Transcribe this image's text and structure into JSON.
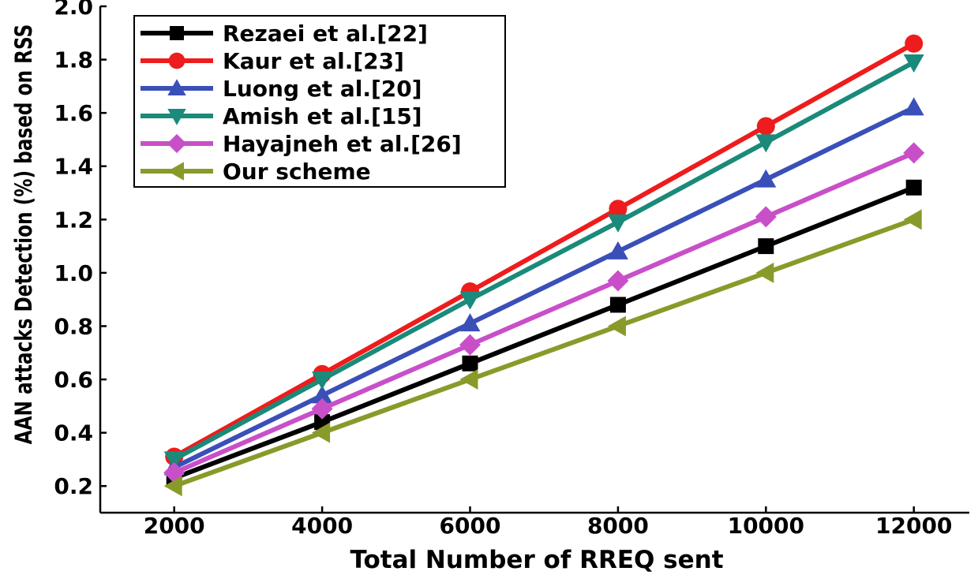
{
  "chart_data": {
    "type": "line",
    "title": "",
    "xlabel": "Total Number of RREQ sent",
    "ylabel": "AAN attacks Detection (%) based on RSS",
    "x": [
      2000,
      4000,
      6000,
      8000,
      10000,
      12000
    ],
    "x_ticks": [
      "2000",
      "4000",
      "6000",
      "8000",
      "10000",
      "12000"
    ],
    "y_ticks": [
      "0.2",
      "0.4",
      "0.6",
      "0.8",
      "1.0",
      "1.2",
      "1.4",
      "1.6",
      "1.8",
      "2.0"
    ],
    "xlim": [
      1000,
      12750
    ],
    "ylim": [
      0.1,
      2.0
    ],
    "grid": false,
    "legend_position": "top-left",
    "series": [
      {
        "name": "Rezaei et al.[22]",
        "color": "#000000",
        "marker": "square",
        "values": [
          0.23,
          0.44,
          0.66,
          0.88,
          1.1,
          1.32
        ]
      },
      {
        "name": "Kaur et al.[23]",
        "color": "#ee1c1c",
        "marker": "circle",
        "values": [
          0.31,
          0.62,
          0.93,
          1.24,
          1.55,
          1.86
        ]
      },
      {
        "name": "Luong et al.[20]",
        "color": "#3a4fb8",
        "marker": "triangle-up",
        "values": [
          0.27,
          0.54,
          0.81,
          1.08,
          1.35,
          1.62
        ]
      },
      {
        "name": "Amish et al.[15]",
        "color": "#1a8a7a",
        "marker": "triangle-down",
        "values": [
          0.3,
          0.6,
          0.9,
          1.19,
          1.49,
          1.79
        ]
      },
      {
        "name": "Hayajneh et al.[26]",
        "color": "#c94fc9",
        "marker": "diamond",
        "values": [
          0.25,
          0.49,
          0.73,
          0.97,
          1.21,
          1.45
        ]
      },
      {
        "name": "Our scheme",
        "color": "#8a9a2a",
        "marker": "triangle-left",
        "values": [
          0.2,
          0.4,
          0.6,
          0.8,
          1.0,
          1.2
        ]
      }
    ]
  }
}
